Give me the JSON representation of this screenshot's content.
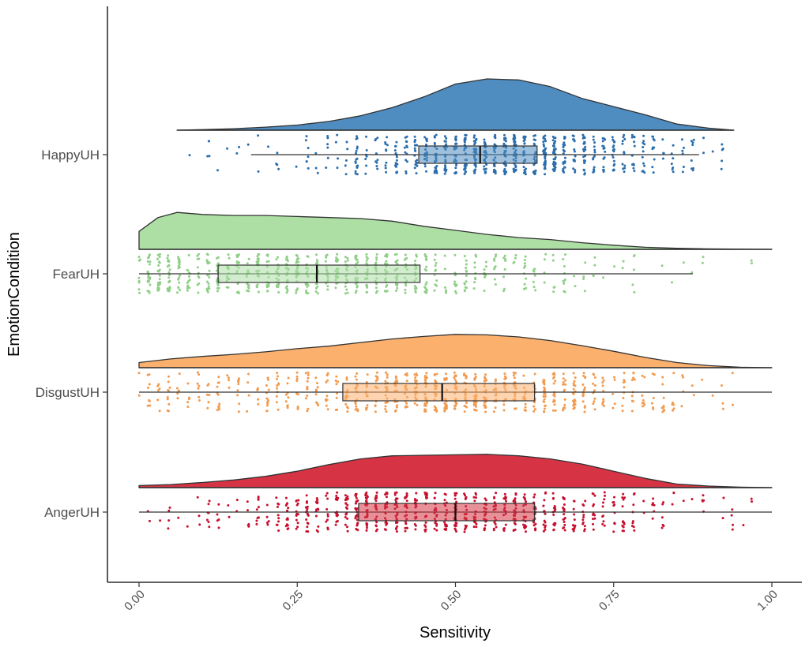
{
  "chart_data": {
    "type": "raincloud",
    "orientation": "horizontal",
    "xlabel": "Sensitivity",
    "ylabel": "EmotionCondition",
    "xlim": [
      0,
      1
    ],
    "x_ticks": [
      "0.00",
      "0.25",
      "0.50",
      "0.75",
      "1.00"
    ],
    "x_tick_values": [
      0,
      0.25,
      0.5,
      0.75,
      1
    ],
    "grid": false,
    "legend": "none",
    "categories": [
      "HappyUH",
      "FearUH",
      "DisgustUH",
      "AngerUH"
    ],
    "series": [
      {
        "category": "HappyUH",
        "fill": "#4F8CBF",
        "point_color": "#2A6EAE",
        "box": {
          "whisker_low": 0.177,
          "q1": 0.442,
          "median": 0.539,
          "q3": 0.629,
          "whisker_high": 0.885
        },
        "range": [
          0.06,
          0.94
        ],
        "density": [
          [
            0.06,
            0
          ],
          [
            0.1,
            0.01
          ],
          [
            0.15,
            0.03
          ],
          [
            0.2,
            0.06
          ],
          [
            0.25,
            0.1
          ],
          [
            0.3,
            0.17
          ],
          [
            0.35,
            0.28
          ],
          [
            0.4,
            0.44
          ],
          [
            0.45,
            0.65
          ],
          [
            0.5,
            0.9
          ],
          [
            0.55,
            1.0
          ],
          [
            0.6,
            0.98
          ],
          [
            0.65,
            0.85
          ],
          [
            0.7,
            0.62
          ],
          [
            0.75,
            0.46
          ],
          [
            0.8,
            0.3
          ],
          [
            0.85,
            0.12
          ],
          [
            0.9,
            0.04
          ],
          [
            0.94,
            0
          ]
        ]
      },
      {
        "category": "FearUH",
        "fill": "#ADDFA5",
        "point_color": "#8FCF86",
        "box": {
          "whisker_low": 0.0,
          "q1": 0.125,
          "median": 0.281,
          "q3": 0.444,
          "whisker_high": 0.875
        },
        "range": [
          0,
          1
        ],
        "density": [
          [
            0,
            0.35
          ],
          [
            0.03,
            0.62
          ],
          [
            0.06,
            0.72
          ],
          [
            0.1,
            0.68
          ],
          [
            0.15,
            0.66
          ],
          [
            0.2,
            0.66
          ],
          [
            0.25,
            0.64
          ],
          [
            0.3,
            0.62
          ],
          [
            0.35,
            0.6
          ],
          [
            0.4,
            0.55
          ],
          [
            0.45,
            0.45
          ],
          [
            0.5,
            0.37
          ],
          [
            0.55,
            0.29
          ],
          [
            0.6,
            0.23
          ],
          [
            0.65,
            0.19
          ],
          [
            0.7,
            0.13
          ],
          [
            0.75,
            0.08
          ],
          [
            0.8,
            0.04
          ],
          [
            0.85,
            0.02
          ],
          [
            0.9,
            0.01
          ],
          [
            1,
            0
          ]
        ]
      },
      {
        "category": "DisgustUH",
        "fill": "#FBB06E",
        "point_color": "#F39A4E",
        "box": {
          "whisker_low": 0.0,
          "q1": 0.322,
          "median": 0.479,
          "q3": 0.625,
          "whisker_high": 1.0
        },
        "range": [
          0,
          1
        ],
        "density": [
          [
            0,
            0.1
          ],
          [
            0.05,
            0.17
          ],
          [
            0.1,
            0.22
          ],
          [
            0.15,
            0.26
          ],
          [
            0.2,
            0.31
          ],
          [
            0.25,
            0.37
          ],
          [
            0.3,
            0.42
          ],
          [
            0.35,
            0.49
          ],
          [
            0.4,
            0.56
          ],
          [
            0.45,
            0.61
          ],
          [
            0.5,
            0.65
          ],
          [
            0.55,
            0.64
          ],
          [
            0.6,
            0.6
          ],
          [
            0.65,
            0.53
          ],
          [
            0.7,
            0.43
          ],
          [
            0.75,
            0.32
          ],
          [
            0.8,
            0.2
          ],
          [
            0.85,
            0.1
          ],
          [
            0.9,
            0.04
          ],
          [
            0.95,
            0.01
          ],
          [
            1,
            0
          ]
        ]
      },
      {
        "category": "AngerUH",
        "fill": "#D63444",
        "point_color": "#C8102E",
        "box": {
          "whisker_low": 0.0,
          "q1": 0.347,
          "median": 0.5,
          "q3": 0.625,
          "whisker_high": 1.0
        },
        "range": [
          0,
          1
        ],
        "density": [
          [
            0,
            0.04
          ],
          [
            0.05,
            0.06
          ],
          [
            0.1,
            0.1
          ],
          [
            0.15,
            0.15
          ],
          [
            0.2,
            0.22
          ],
          [
            0.25,
            0.32
          ],
          [
            0.3,
            0.45
          ],
          [
            0.35,
            0.56
          ],
          [
            0.4,
            0.62
          ],
          [
            0.45,
            0.63
          ],
          [
            0.5,
            0.64
          ],
          [
            0.55,
            0.65
          ],
          [
            0.6,
            0.62
          ],
          [
            0.65,
            0.56
          ],
          [
            0.7,
            0.46
          ],
          [
            0.75,
            0.32
          ],
          [
            0.8,
            0.18
          ],
          [
            0.85,
            0.07
          ],
          [
            0.9,
            0.03
          ],
          [
            0.95,
            0.01
          ],
          [
            1,
            0
          ]
        ]
      }
    ]
  }
}
